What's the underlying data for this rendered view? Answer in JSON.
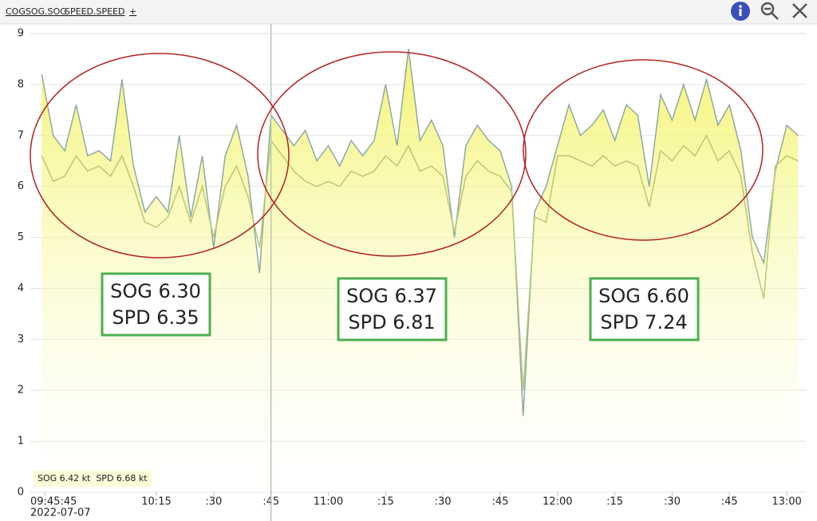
{
  "header": {
    "tabs": [
      "COGSOG.SOG",
      "SPEED.SPEED",
      "+"
    ]
  },
  "chart_data": {
    "type": "line",
    "x": [
      "09:45",
      "09:48",
      "09:51",
      "09:54",
      "09:57",
      "10:00",
      "10:03",
      "10:06",
      "10:09",
      "10:12",
      "10:15",
      "10:18",
      "10:21",
      "10:24",
      "10:27",
      "10:30",
      "10:33",
      "10:36",
      "10:39",
      "10:42",
      "10:45",
      "10:48",
      "10:51",
      "10:54",
      "10:57",
      "11:00",
      "11:03",
      "11:06",
      "11:09",
      "11:12",
      "11:15",
      "11:18",
      "11:21",
      "11:24",
      "11:27",
      "11:30",
      "11:33",
      "11:36",
      "11:39",
      "11:42",
      "11:45",
      "11:48",
      "11:51",
      "11:54",
      "11:57",
      "12:00",
      "12:03",
      "12:06",
      "12:09",
      "12:12",
      "12:15",
      "12:18",
      "12:21",
      "12:24",
      "12:27",
      "12:30",
      "12:33",
      "12:36",
      "12:39",
      "12:42",
      "12:45",
      "12:48",
      "12:51",
      "12:54",
      "12:57",
      "13:00",
      "13:03"
    ],
    "series": [
      {
        "name": "SPEED.SPEED",
        "color": "#8fa9a3",
        "fill": true,
        "values": [
          8.2,
          7.0,
          6.7,
          7.6,
          6.6,
          6.7,
          6.5,
          8.1,
          6.4,
          5.5,
          5.8,
          5.5,
          7.0,
          5.4,
          6.6,
          4.8,
          6.6,
          7.2,
          6.2,
          4.3,
          7.4,
          7.1,
          6.8,
          7.1,
          6.5,
          6.8,
          6.4,
          6.9,
          6.6,
          6.9,
          8.0,
          6.8,
          8.7,
          6.9,
          7.3,
          6.8,
          5.0,
          6.8,
          7.2,
          6.9,
          6.7,
          6.0,
          1.5,
          5.5,
          6.0,
          6.8,
          7.6,
          7.0,
          7.2,
          7.5,
          6.9,
          7.6,
          7.4,
          6.0,
          7.8,
          7.3,
          8.0,
          7.3,
          8.1,
          7.2,
          7.6,
          6.7,
          5.0,
          4.5,
          6.3,
          7.2,
          7.0
        ]
      },
      {
        "name": "COGSOG.SOG",
        "color": "#b9c874",
        "fill": false,
        "values": [
          6.6,
          6.1,
          6.2,
          6.6,
          6.3,
          6.4,
          6.2,
          6.6,
          6.0,
          5.3,
          5.2,
          5.4,
          6.0,
          5.3,
          6.0,
          5.0,
          6.0,
          6.4,
          5.8,
          4.8,
          6.9,
          6.6,
          6.3,
          6.1,
          6.0,
          6.1,
          6.0,
          6.3,
          6.2,
          6.3,
          6.6,
          6.4,
          6.8,
          6.3,
          6.4,
          6.2,
          5.1,
          6.2,
          6.5,
          6.3,
          6.2,
          5.9,
          2.0,
          5.4,
          5.3,
          6.6,
          6.6,
          6.5,
          6.4,
          6.6,
          6.4,
          6.5,
          6.4,
          5.6,
          6.7,
          6.5,
          6.8,
          6.6,
          7.0,
          6.5,
          6.7,
          6.2,
          4.7,
          3.8,
          6.4,
          6.6,
          6.5
        ]
      }
    ],
    "xlim": [
      "09:42",
      "13:05"
    ],
    "xticks": [
      "09:45:45",
      "10:15",
      {
        "value": "10:30",
        "label": ":30"
      },
      {
        "value": "10:45",
        "label": ":45"
      },
      "11:00",
      {
        "value": "11:15",
        "label": ":15"
      },
      {
        "value": "11:30",
        "label": ":30"
      },
      {
        "value": "11:45",
        "label": ":45"
      },
      "12:00",
      {
        "value": "12:15",
        "label": ":15"
      },
      {
        "value": "12:30",
        "label": ":30"
      },
      {
        "value": "12:45",
        "label": ":45"
      },
      "13:00"
    ],
    "x_date_label": "2022-07-07",
    "ylim": [
      0,
      9
    ],
    "yticks": [
      0,
      1,
      2,
      3,
      4,
      5,
      6,
      7,
      8,
      9
    ],
    "grid": true,
    "cursor": "10:45",
    "readout": "SOG 6.42 kt  SPD 6.68 kt",
    "annotations": [
      {
        "lines": [
          "SOG 6.30",
          "SPD 6.35"
        ]
      },
      {
        "lines": [
          "SOG 6.37",
          "SPD 6.81"
        ]
      },
      {
        "lines": [
          "SOG 6.60",
          "SPD 7.24"
        ]
      }
    ]
  }
}
